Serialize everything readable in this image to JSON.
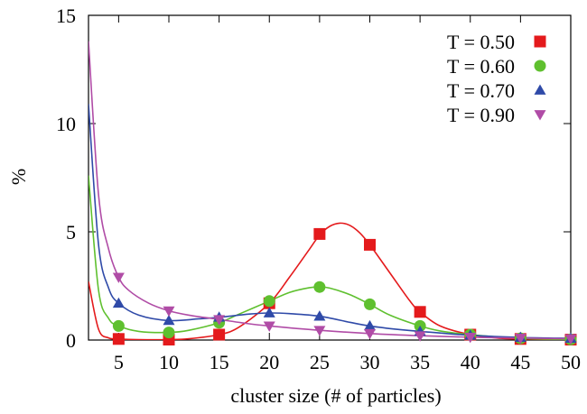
{
  "chart_data": {
    "type": "line",
    "title": "",
    "xlabel": "cluster size (# of particles)",
    "ylabel": "%",
    "xlim": [
      2,
      50
    ],
    "ylim": [
      0,
      15
    ],
    "xticks": [
      5,
      10,
      15,
      20,
      25,
      30,
      35,
      40,
      45,
      50
    ],
    "yticks": [
      0,
      5,
      10,
      15
    ],
    "grid": false,
    "legend": "top-right",
    "series": [
      {
        "name": "T = 0.50",
        "color": "#e41a1c",
        "marker": "square",
        "points": [
          [
            5,
            0.05
          ],
          [
            10,
            0.02
          ],
          [
            15,
            0.25
          ],
          [
            20,
            1.7
          ],
          [
            25,
            4.9
          ],
          [
            30,
            4.4
          ],
          [
            35,
            1.3
          ],
          [
            40,
            0.25
          ],
          [
            45,
            0.05
          ],
          [
            50,
            0.02
          ]
        ],
        "curve": [
          [
            2,
            2.7
          ],
          [
            3,
            0.5
          ],
          [
            4,
            0.1
          ],
          [
            5,
            0.05
          ],
          [
            7,
            0.02
          ],
          [
            10,
            0.02
          ],
          [
            12,
            0.06
          ],
          [
            15,
            0.25
          ],
          [
            17,
            0.6
          ],
          [
            20,
            1.7
          ],
          [
            22,
            2.9
          ],
          [
            24,
            4.2
          ],
          [
            25,
            4.85
          ],
          [
            26,
            5.25
          ],
          [
            27,
            5.4
          ],
          [
            28,
            5.3
          ],
          [
            29,
            4.95
          ],
          [
            30,
            4.4
          ],
          [
            32,
            3.1
          ],
          [
            34,
            1.8
          ],
          [
            35,
            1.3
          ],
          [
            37,
            0.65
          ],
          [
            40,
            0.25
          ],
          [
            43,
            0.08
          ],
          [
            45,
            0.05
          ],
          [
            50,
            0.02
          ]
        ]
      },
      {
        "name": "T = 0.60",
        "color": "#5fc02f",
        "marker": "circle",
        "points": [
          [
            5,
            0.65
          ],
          [
            10,
            0.35
          ],
          [
            15,
            0.8
          ],
          [
            20,
            1.8
          ],
          [
            25,
            2.45
          ],
          [
            30,
            1.65
          ],
          [
            35,
            0.65
          ],
          [
            40,
            0.25
          ],
          [
            45,
            0.08
          ],
          [
            50,
            0.03
          ]
        ],
        "curve": [
          [
            2,
            7.6
          ],
          [
            3,
            2.3
          ],
          [
            4,
            1.0
          ],
          [
            5,
            0.65
          ],
          [
            7,
            0.4
          ],
          [
            10,
            0.35
          ],
          [
            12,
            0.45
          ],
          [
            15,
            0.8
          ],
          [
            17,
            1.2
          ],
          [
            20,
            1.8
          ],
          [
            22,
            2.2
          ],
          [
            24,
            2.42
          ],
          [
            25,
            2.45
          ],
          [
            26,
            2.4
          ],
          [
            28,
            2.1
          ],
          [
            30,
            1.65
          ],
          [
            32,
            1.15
          ],
          [
            35,
            0.65
          ],
          [
            37,
            0.42
          ],
          [
            40,
            0.25
          ],
          [
            45,
            0.08
          ],
          [
            50,
            0.03
          ]
        ]
      },
      {
        "name": "T = 0.70",
        "color": "#2f4aa8",
        "marker": "triangle-up",
        "points": [
          [
            5,
            1.7
          ],
          [
            10,
            0.9
          ],
          [
            15,
            1.05
          ],
          [
            20,
            1.25
          ],
          [
            25,
            1.1
          ],
          [
            30,
            0.65
          ],
          [
            35,
            0.4
          ],
          [
            40,
            0.22
          ],
          [
            45,
            0.12
          ],
          [
            50,
            0.08
          ]
        ],
        "curve": [
          [
            2,
            10.9
          ],
          [
            3,
            4.4
          ],
          [
            4,
            2.4
          ],
          [
            5,
            1.7
          ],
          [
            7,
            1.15
          ],
          [
            10,
            0.9
          ],
          [
            13,
            0.98
          ],
          [
            15,
            1.05
          ],
          [
            18,
            1.2
          ],
          [
            20,
            1.25
          ],
          [
            22,
            1.22
          ],
          [
            25,
            1.1
          ],
          [
            28,
            0.82
          ],
          [
            30,
            0.65
          ],
          [
            33,
            0.48
          ],
          [
            35,
            0.4
          ],
          [
            40,
            0.22
          ],
          [
            45,
            0.12
          ],
          [
            50,
            0.08
          ]
        ]
      },
      {
        "name": "T = 0.90",
        "color": "#b04ca6",
        "marker": "triangle-down",
        "points": [
          [
            5,
            2.9
          ],
          [
            10,
            1.35
          ],
          [
            15,
            0.95
          ],
          [
            20,
            0.65
          ],
          [
            25,
            0.45
          ],
          [
            30,
            0.3
          ],
          [
            35,
            0.2
          ],
          [
            40,
            0.13
          ],
          [
            45,
            0.09
          ],
          [
            50,
            0.06
          ]
        ],
        "curve": [
          [
            2,
            13.8
          ],
          [
            3,
            6.7
          ],
          [
            4,
            4.2
          ],
          [
            5,
            2.9
          ],
          [
            6,
            2.3
          ],
          [
            8,
            1.7
          ],
          [
            10,
            1.35
          ],
          [
            12,
            1.15
          ],
          [
            15,
            0.95
          ],
          [
            18,
            0.75
          ],
          [
            20,
            0.65
          ],
          [
            25,
            0.45
          ],
          [
            30,
            0.3
          ],
          [
            35,
            0.2
          ],
          [
            40,
            0.13
          ],
          [
            45,
            0.09
          ],
          [
            50,
            0.06
          ]
        ]
      }
    ]
  }
}
